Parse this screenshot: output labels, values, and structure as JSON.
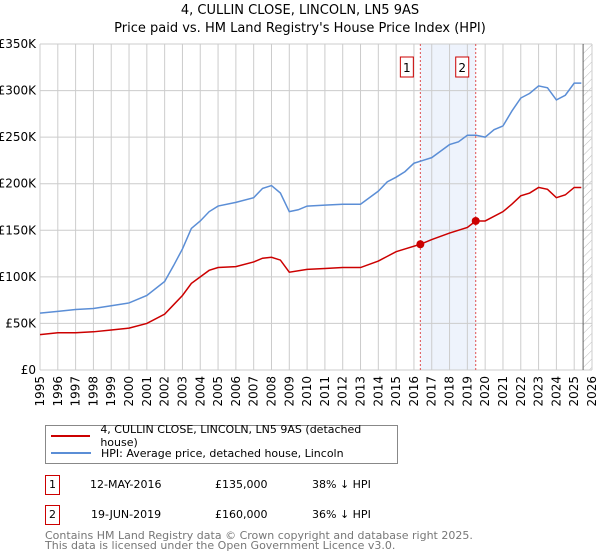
{
  "title": "4, CULLIN CLOSE, LINCOLN, LN5 9AS",
  "subtitle": "Price paid vs. HM Land Registry's House Price Index (HPI)",
  "chart_data": {
    "type": "line",
    "title": "4, CULLIN CLOSE, LINCOLN, LN5 9AS — Price paid vs. HM Land Registry's House Price Index (HPI)",
    "xlim": [
      1995,
      2026
    ],
    "ylim": [
      0,
      350000
    ],
    "y_ticks": [
      {
        "v": 0,
        "label": "£0"
      },
      {
        "v": 50000,
        "label": "£50K"
      },
      {
        "v": 100000,
        "label": "£100K"
      },
      {
        "v": 150000,
        "label": "£150K"
      },
      {
        "v": 200000,
        "label": "£200K"
      },
      {
        "v": 250000,
        "label": "£250K"
      },
      {
        "v": 300000,
        "label": "£300K"
      },
      {
        "v": 350000,
        "label": "£350K"
      }
    ],
    "x_ticks": [
      "1995",
      "1996",
      "1997",
      "1998",
      "1999",
      "2000",
      "2001",
      "2002",
      "2003",
      "2004",
      "2005",
      "2006",
      "2007",
      "2008",
      "2009",
      "2010",
      "2011",
      "2012",
      "2013",
      "2014",
      "2015",
      "2016",
      "2017",
      "2018",
      "2019",
      "2020",
      "2021",
      "2022",
      "2023",
      "2024",
      "2025",
      "2026"
    ],
    "grid": true,
    "series": [
      {
        "name": "4, CULLIN CLOSE, LINCOLN, LN5 9AS (detached house)",
        "color": "#cc0000",
        "x": [
          1995,
          1996,
          1997,
          1998,
          1999,
          2000,
          2001,
          2002,
          2002.5,
          2003,
          2003.5,
          2004,
          2004.5,
          2005,
          2006,
          2007,
          2007.5,
          2008,
          2008.5,
          2009,
          2010,
          2011,
          2012,
          2013,
          2014,
          2014.5,
          2015,
          2015.5,
          2016.36,
          2017,
          2018,
          2019,
          2019.47,
          2020,
          2021,
          2021.5,
          2022,
          2022.5,
          2023,
          2023.5,
          2024,
          2024.5,
          2025,
          2025.4
        ],
        "y": [
          38000,
          40000,
          40000,
          41000,
          43000,
          45000,
          50000,
          60000,
          70000,
          80000,
          93000,
          100000,
          107000,
          110000,
          111000,
          116000,
          120000,
          121000,
          118000,
          105000,
          108000,
          109000,
          110000,
          110000,
          117000,
          122000,
          127000,
          130000,
          135000,
          140000,
          147000,
          153000,
          160000,
          160000,
          170000,
          178000,
          187000,
          190000,
          196000,
          194000,
          185000,
          188000,
          196000,
          196000
        ]
      },
      {
        "name": "HPI: Average price, detached house, Lincoln",
        "color": "#5b8ed6",
        "x": [
          1995,
          1996,
          1997,
          1998,
          1999,
          2000,
          2001,
          2002,
          2002.5,
          2003,
          2003.5,
          2004,
          2004.5,
          2005,
          2006,
          2007,
          2007.5,
          2008,
          2008.5,
          2009,
          2009.5,
          2010,
          2011,
          2012,
          2013,
          2014,
          2014.5,
          2015,
          2015.5,
          2016,
          2016.5,
          2017,
          2017.5,
          2018,
          2018.5,
          2019,
          2019.5,
          2020,
          2020.5,
          2021,
          2021.5,
          2022,
          2022.5,
          2023,
          2023.5,
          2024,
          2024.5,
          2025,
          2025.4
        ],
        "y": [
          61000,
          63000,
          65000,
          66000,
          69000,
          72000,
          80000,
          95000,
          112000,
          130000,
          152000,
          160000,
          170000,
          176000,
          180000,
          185000,
          195000,
          198000,
          190000,
          170000,
          172000,
          176000,
          177000,
          178000,
          178000,
          192000,
          202000,
          207000,
          213000,
          222000,
          225000,
          228000,
          235000,
          242000,
          245000,
          252000,
          252000,
          250000,
          258000,
          262000,
          278000,
          292000,
          297000,
          305000,
          303000,
          290000,
          295000,
          308000,
          308000
        ]
      }
    ],
    "annotations": [
      {
        "label": "1",
        "x": 2016.36,
        "y": 135000
      },
      {
        "label": "2",
        "x": 2019.47,
        "y": 160000
      }
    ],
    "shaded_range": [
      2016.36,
      2019.47
    ],
    "forecast_hatch_from": 2025.5
  },
  "legend": [
    {
      "label": "4, CULLIN CLOSE, LINCOLN, LN5 9AS (detached house)",
      "color": "#cc0000"
    },
    {
      "label": "HPI: Average price, detached house, Lincoln",
      "color": "#5b8ed6"
    }
  ],
  "transactions": [
    {
      "num": "1",
      "date": "12-MAY-2016",
      "price": "£135,000",
      "hpi": "38% ↓ HPI"
    },
    {
      "num": "2",
      "date": "19-JUN-2019",
      "price": "£160,000",
      "hpi": "36% ↓ HPI"
    }
  ],
  "footer": [
    "Contains HM Land Registry data © Crown copyright and database right 2025.",
    "This data is licensed under the Open Government Licence v3.0."
  ]
}
